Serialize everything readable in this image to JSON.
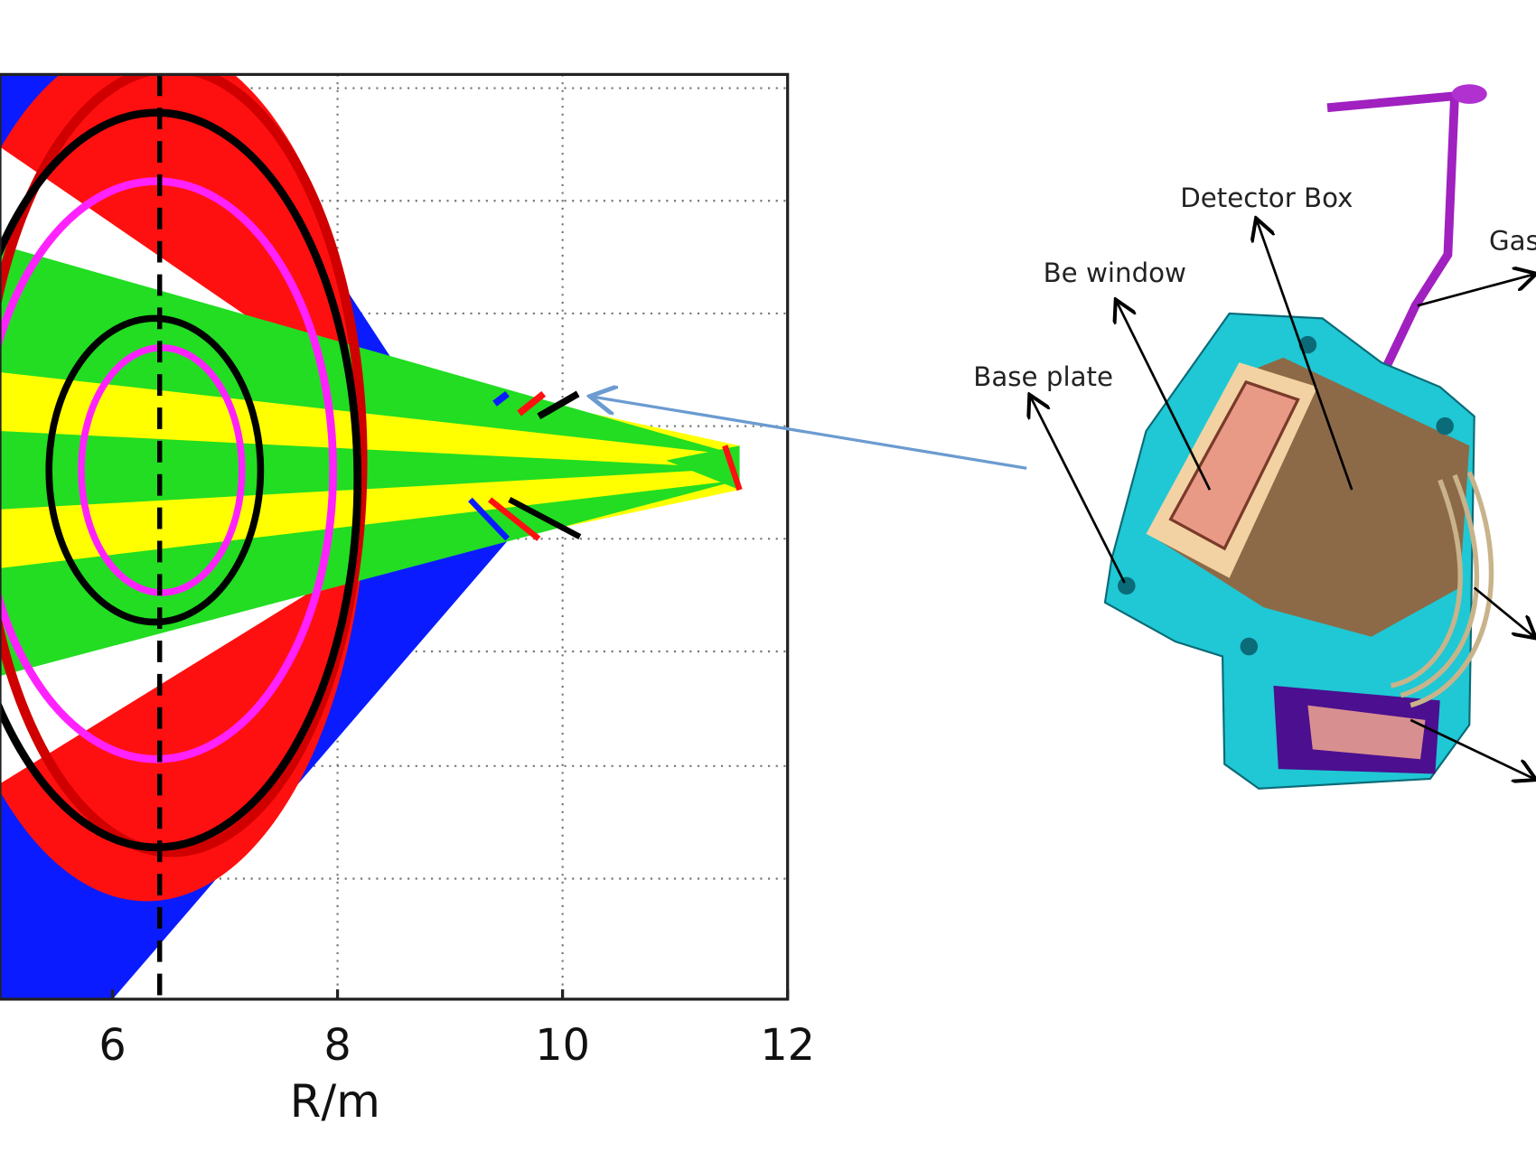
{
  "chart_data": {
    "type": "line",
    "xlabel": "R/m",
    "xlim": [
      5,
      12
    ],
    "xticks": [
      6,
      8,
      10,
      12
    ],
    "grid": true
  },
  "diagram": {
    "labels": [
      "Detector Box",
      "Be window",
      "Base plate",
      "Gas"
    ]
  }
}
